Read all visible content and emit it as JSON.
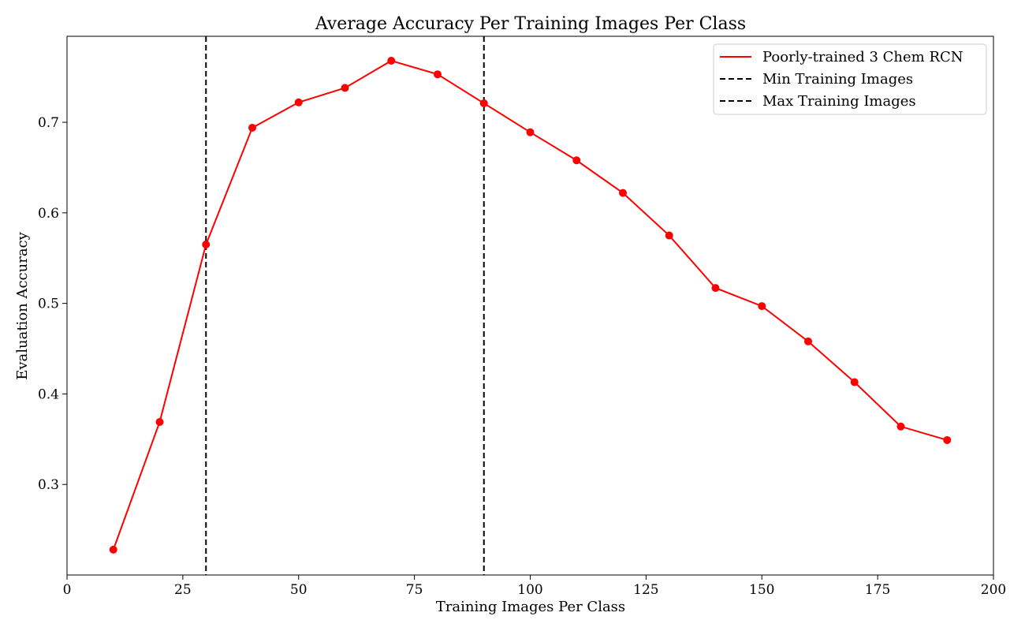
{
  "chart_data": {
    "type": "line",
    "title": "Average Accuracy Per Training Images Per Class",
    "xlabel": "Training Images Per Class",
    "ylabel": "Evaluation Accuracy",
    "xlim": [
      0,
      200
    ],
    "ylim": [
      0.2,
      0.795
    ],
    "xticks": [
      0,
      25,
      50,
      75,
      100,
      125,
      150,
      175,
      200
    ],
    "yticks": [
      0.3,
      0.4,
      0.5,
      0.6,
      0.7
    ],
    "grid": false,
    "legend_position": "top-right",
    "series": [
      {
        "name": "Poorly-trained 3 Chem RCN",
        "color": "#ff0000",
        "marker": "circle",
        "x": [
          10,
          20,
          30,
          40,
          50,
          60,
          70,
          80,
          90,
          100,
          110,
          120,
          130,
          140,
          150,
          160,
          170,
          180,
          190
        ],
        "y": [
          0.228,
          0.369,
          0.565,
          0.694,
          0.722,
          0.738,
          0.768,
          0.753,
          0.721,
          0.689,
          0.658,
          0.622,
          0.575,
          0.517,
          0.497,
          0.458,
          0.413,
          0.364,
          0.349
        ]
      }
    ],
    "vlines": [
      {
        "name": "Min Training Images",
        "x": 30,
        "color": "#000000",
        "style": "dashed"
      },
      {
        "name": "Max Training Images",
        "x": 90,
        "color": "#000000",
        "style": "dashed"
      }
    ]
  }
}
